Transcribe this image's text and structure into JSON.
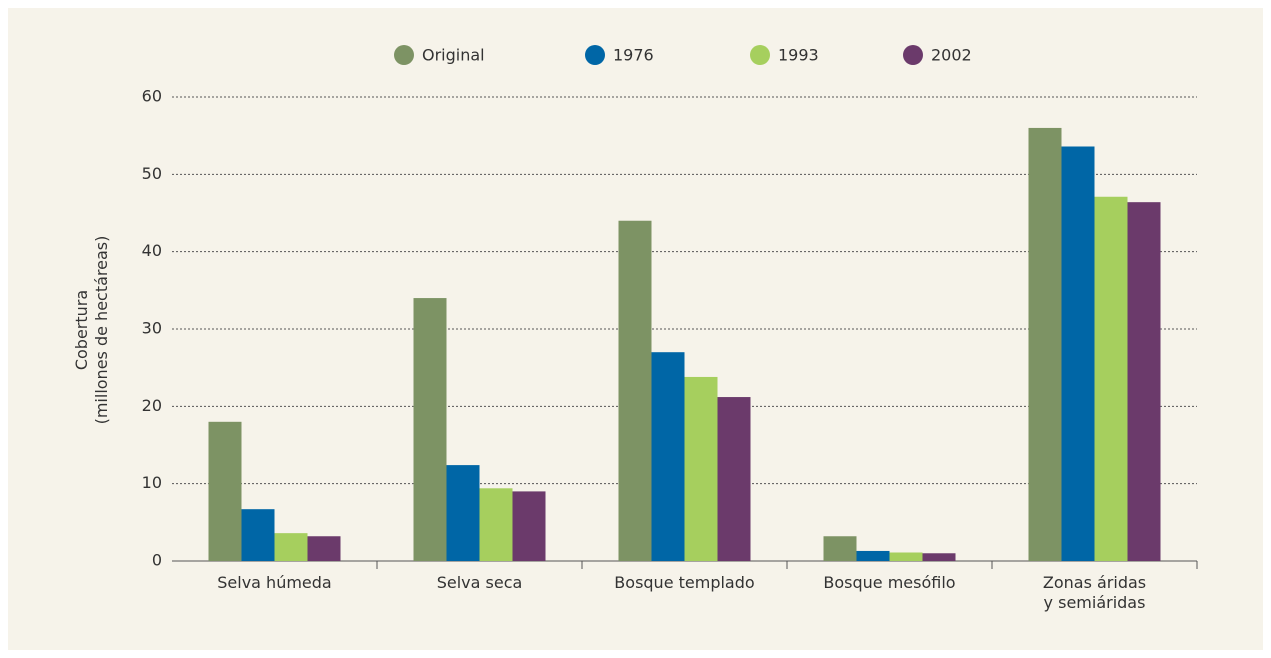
{
  "chart_data": {
    "type": "bar",
    "y_label": "Cobertura\n(millones de hectáreas)",
    "categories": [
      "Selva húmeda",
      "Selva seca",
      "Bosque templado",
      "Bosque mesófilo",
      "Zonas áridas\ny semiáridas"
    ],
    "series": [
      {
        "name": "Original",
        "color": "#7d9364",
        "values": [
          18,
          34,
          44,
          3.2,
          56
        ]
      },
      {
        "name": "1976",
        "color": "#0066a6",
        "values": [
          6.7,
          12.4,
          27,
          1.3,
          53.6
        ]
      },
      {
        "name": "1993",
        "color": "#a6cf5e",
        "values": [
          3.6,
          9.4,
          23.8,
          1.1,
          47.1
        ]
      },
      {
        "name": "2002",
        "color": "#6b3a6b",
        "values": [
          3.2,
          9.0,
          21.2,
          1.0,
          46.4
        ]
      }
    ],
    "ylim": [
      0,
      60
    ],
    "yticks": [
      0,
      10,
      20,
      30,
      40,
      50,
      60
    ],
    "grid": true,
    "legend": "top"
  }
}
